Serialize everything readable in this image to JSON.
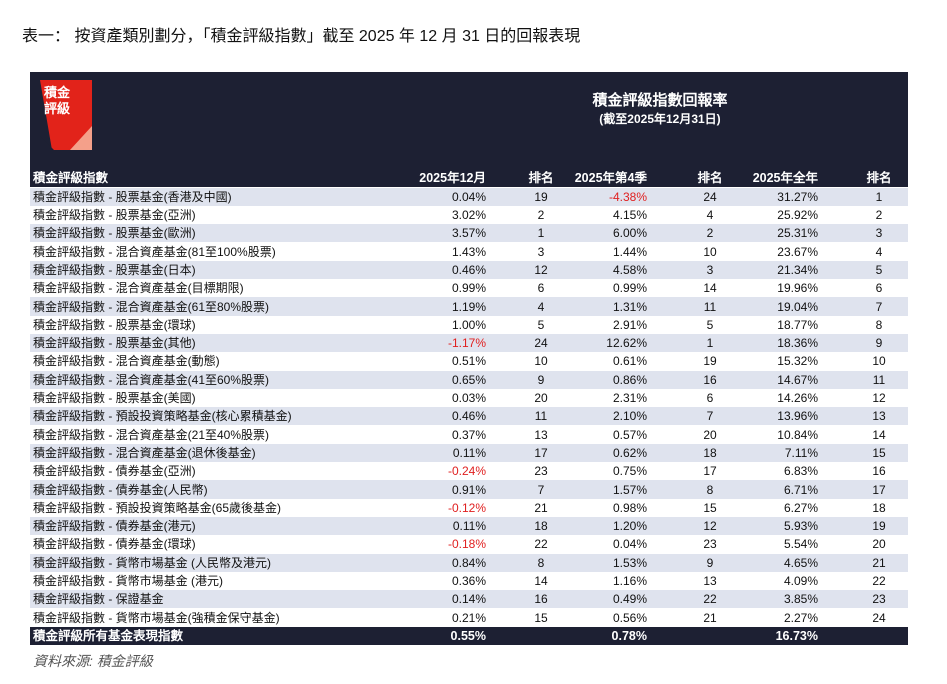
{
  "header": {
    "title": "表一： 按資產類別劃分，「積金評級指數」截至 2025 年 12 月 31 日的回報表現"
  },
  "logo": [
    "積金",
    "評級"
  ],
  "table": {
    "title": "積金評級指數回報率",
    "subtitle": "(截至2025年12月31日)",
    "columns": [
      "積金評級指數",
      "2025年12月",
      "排名",
      "2025年第4季",
      "排名",
      "2025年全年",
      "排名"
    ],
    "rows": [
      [
        "積金評級指數 - 股票基金(香港及中國)",
        "0.04%",
        "19",
        "-4.38%",
        "24",
        "31.27%",
        "1"
      ],
      [
        "積金評級指數 - 股票基金(亞洲)",
        "3.02%",
        "2",
        "4.15%",
        "4",
        "25.92%",
        "2"
      ],
      [
        "積金評級指數 - 股票基金(歐洲)",
        "3.57%",
        "1",
        "6.00%",
        "2",
        "25.31%",
        "3"
      ],
      [
        "積金評級指數 - 混合資產基金(81至100%股票)",
        "1.43%",
        "3",
        "1.44%",
        "10",
        "23.67%",
        "4"
      ],
      [
        "積金評級指數 - 股票基金(日本)",
        "0.46%",
        "12",
        "4.58%",
        "3",
        "21.34%",
        "5"
      ],
      [
        "積金評級指數 - 混合資產基金(目標期限)",
        "0.99%",
        "6",
        "0.99%",
        "14",
        "19.96%",
        "6"
      ],
      [
        "積金評級指數 - 混合資產基金(61至80%股票)",
        "1.19%",
        "4",
        "1.31%",
        "11",
        "19.04%",
        "7"
      ],
      [
        "積金評級指數 - 股票基金(環球)",
        "1.00%",
        "5",
        "2.91%",
        "5",
        "18.77%",
        "8"
      ],
      [
        "積金評級指數 - 股票基金(其他)",
        "-1.17%",
        "24",
        "12.62%",
        "1",
        "18.36%",
        "9"
      ],
      [
        "積金評級指數 - 混合資產基金(動態)",
        "0.51%",
        "10",
        "0.61%",
        "19",
        "15.32%",
        "10"
      ],
      [
        "積金評級指數 - 混合資產基金(41至60%股票)",
        "0.65%",
        "9",
        "0.86%",
        "16",
        "14.67%",
        "11"
      ],
      [
        "積金評級指數 - 股票基金(美國)",
        "0.03%",
        "20",
        "2.31%",
        "6",
        "14.26%",
        "12"
      ],
      [
        "積金評級指數 - 預設投資策略基金(核心累積基金)",
        "0.46%",
        "11",
        "2.10%",
        "7",
        "13.96%",
        "13"
      ],
      [
        "積金評級指數 - 混合資產基金(21至40%股票)",
        "0.37%",
        "13",
        "0.57%",
        "20",
        "10.84%",
        "14"
      ],
      [
        "積金評級指數 - 混合資產基金(退休後基金)",
        "0.11%",
        "17",
        "0.62%",
        "18",
        "7.11%",
        "15"
      ],
      [
        "積金評級指數 - 債券基金(亞洲)",
        "-0.24%",
        "23",
        "0.75%",
        "17",
        "6.83%",
        "16"
      ],
      [
        "積金評級指數 - 債券基金(人民幣)",
        "0.91%",
        "7",
        "1.57%",
        "8",
        "6.71%",
        "17"
      ],
      [
        "積金評級指數 - 預設投資策略基金(65歲後基金)",
        "-0.12%",
        "21",
        "0.98%",
        "15",
        "6.27%",
        "18"
      ],
      [
        "積金評級指數 - 債券基金(港元)",
        "0.11%",
        "18",
        "1.20%",
        "12",
        "5.93%",
        "19"
      ],
      [
        "積金評級指數 - 債券基金(環球)",
        "-0.18%",
        "22",
        "0.04%",
        "23",
        "5.54%",
        "20"
      ],
      [
        "積金評級指數 - 貨幣市場基金 (人民幣及港元)",
        "0.84%",
        "8",
        "1.53%",
        "9",
        "4.65%",
        "21"
      ],
      [
        "積金評級指數 - 貨幣市場基金 (港元)",
        "0.36%",
        "14",
        "1.16%",
        "13",
        "4.09%",
        "22"
      ],
      [
        "積金評級指數 - 保證基金",
        "0.14%",
        "16",
        "0.49%",
        "22",
        "3.85%",
        "23"
      ],
      [
        "積金評級指數 - 貨幣市場基金(強積金保守基金)",
        "0.21%",
        "15",
        "0.56%",
        "21",
        "2.27%",
        "24"
      ]
    ],
    "total": [
      "積金評級所有基金表現指數",
      "0.55%",
      null,
      "0.78%",
      null,
      "16.73%",
      null
    ]
  },
  "footer": {
    "source": "資料來源:   積金評級"
  }
}
